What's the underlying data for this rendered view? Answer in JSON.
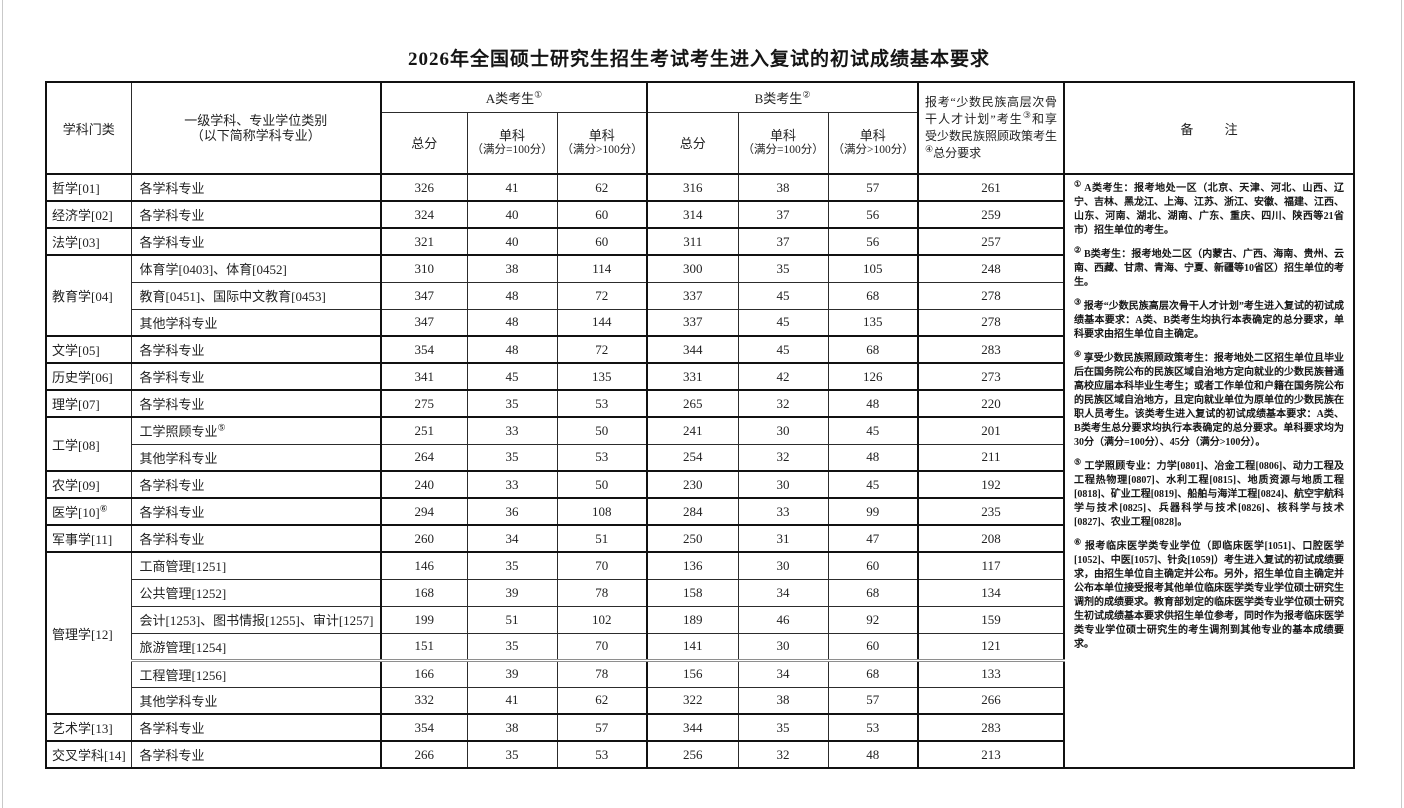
{
  "title": "2026年全国硕士研究生招生考试考生进入复试的初试成绩基本要求",
  "table": {
    "headers": {
      "subject_category": "学科门类",
      "discipline_line1": "一级学科、专业学位类别",
      "discipline_line2": "（以下简称学科专业）",
      "group_a_label": "A类考生",
      "group_a_sup": "①",
      "group_b_label": "B类考生",
      "group_b_sup": "②",
      "total_label": "总分",
      "single_label": "单科",
      "single_eq100_sub": "（满分=100分）",
      "single_gt100_sub": "（满分>100分）",
      "minority_p1": "报考“少数民族高层次骨干人才计划”考生",
      "minority_s1": "③",
      "minority_p2": "和享受少数民族照顾政策考生",
      "minority_s2": "④",
      "minority_p3": "总分要求",
      "remarks_label": "备 注"
    },
    "rows": [
      {
        "category": "哲学[01]",
        "cat_sup": "",
        "cat_span": 1,
        "group_start": true,
        "major": "各学科专业",
        "major_sup": "",
        "a_total": "326",
        "a_s100": "41",
        "a_sgt100": "62",
        "b_total": "316",
        "b_s100": "38",
        "b_sgt100": "57",
        "minority": "261"
      },
      {
        "category": "经济学[02]",
        "cat_sup": "",
        "cat_span": 1,
        "group_start": true,
        "major": "各学科专业",
        "major_sup": "",
        "a_total": "324",
        "a_s100": "40",
        "a_sgt100": "60",
        "b_total": "314",
        "b_s100": "37",
        "b_sgt100": "56",
        "minority": "259"
      },
      {
        "category": "法学[03]",
        "cat_sup": "",
        "cat_span": 1,
        "group_start": true,
        "major": "各学科专业",
        "major_sup": "",
        "a_total": "321",
        "a_s100": "40",
        "a_sgt100": "60",
        "b_total": "311",
        "b_s100": "37",
        "b_sgt100": "56",
        "minority": "257"
      },
      {
        "category": "教育学[04]",
        "cat_sup": "",
        "cat_span": 3,
        "group_start": true,
        "major": "体育学[0403]、体育[0452]",
        "major_sup": "",
        "a_total": "310",
        "a_s100": "38",
        "a_sgt100": "114",
        "b_total": "300",
        "b_s100": "35",
        "b_sgt100": "105",
        "minority": "248"
      },
      {
        "cat_span": 0,
        "major": "教育[0451]、国际中文教育[0453]",
        "major_sup": "",
        "a_total": "347",
        "a_s100": "48",
        "a_sgt100": "72",
        "b_total": "337",
        "b_s100": "45",
        "b_sgt100": "68",
        "minority": "278"
      },
      {
        "cat_span": 0,
        "major": "其他学科专业",
        "major_sup": "",
        "a_total": "347",
        "a_s100": "48",
        "a_sgt100": "144",
        "b_total": "337",
        "b_s100": "45",
        "b_sgt100": "135",
        "minority": "278"
      },
      {
        "category": "文学[05]",
        "cat_sup": "",
        "cat_span": 1,
        "group_start": true,
        "major": "各学科专业",
        "major_sup": "",
        "a_total": "354",
        "a_s100": "48",
        "a_sgt100": "72",
        "b_total": "344",
        "b_s100": "45",
        "b_sgt100": "68",
        "minority": "283"
      },
      {
        "category": "历史学[06]",
        "cat_sup": "",
        "cat_span": 1,
        "group_start": true,
        "major": "各学科专业",
        "major_sup": "",
        "a_total": "341",
        "a_s100": "45",
        "a_sgt100": "135",
        "b_total": "331",
        "b_s100": "42",
        "b_sgt100": "126",
        "minority": "273"
      },
      {
        "category": "理学[07]",
        "cat_sup": "",
        "cat_span": 1,
        "group_start": true,
        "major": "各学科专业",
        "major_sup": "",
        "a_total": "275",
        "a_s100": "35",
        "a_sgt100": "53",
        "b_total": "265",
        "b_s100": "32",
        "b_sgt100": "48",
        "minority": "220"
      },
      {
        "category": "工学[08]",
        "cat_sup": "",
        "cat_span": 2,
        "group_start": true,
        "major": "工学照顾专业",
        "major_sup": "⑤",
        "a_total": "251",
        "a_s100": "33",
        "a_sgt100": "50",
        "b_total": "241",
        "b_s100": "30",
        "b_sgt100": "45",
        "minority": "201"
      },
      {
        "cat_span": 0,
        "major": "其他学科专业",
        "major_sup": "",
        "a_total": "264",
        "a_s100": "35",
        "a_sgt100": "53",
        "b_total": "254",
        "b_s100": "32",
        "b_sgt100": "48",
        "minority": "211"
      },
      {
        "category": "农学[09]",
        "cat_sup": "",
        "cat_span": 1,
        "group_start": true,
        "major": "各学科专业",
        "major_sup": "",
        "a_total": "240",
        "a_s100": "33",
        "a_sgt100": "50",
        "b_total": "230",
        "b_s100": "30",
        "b_sgt100": "45",
        "minority": "192"
      },
      {
        "category": "医学[10]",
        "cat_sup": "⑥",
        "cat_span": 1,
        "group_start": true,
        "major": "各学科专业",
        "major_sup": "",
        "a_total": "294",
        "a_s100": "36",
        "a_sgt100": "108",
        "b_total": "284",
        "b_s100": "33",
        "b_sgt100": "99",
        "minority": "235"
      },
      {
        "category": "军事学[11]",
        "cat_sup": "",
        "cat_span": 1,
        "group_start": true,
        "major": "各学科专业",
        "major_sup": "",
        "a_total": "260",
        "a_s100": "34",
        "a_sgt100": "51",
        "b_total": "250",
        "b_s100": "31",
        "b_sgt100": "47",
        "minority": "208"
      },
      {
        "category": "管理学[12]",
        "cat_sup": "",
        "cat_span": 6,
        "group_start": true,
        "major": "工商管理[1251]",
        "major_sup": "",
        "a_total": "146",
        "a_s100": "35",
        "a_sgt100": "70",
        "b_total": "136",
        "b_s100": "30",
        "b_sgt100": "60",
        "minority": "117"
      },
      {
        "cat_span": 0,
        "major": "公共管理[1252]",
        "major_sup": "",
        "a_total": "168",
        "a_s100": "39",
        "a_sgt100": "78",
        "b_total": "158",
        "b_s100": "34",
        "b_sgt100": "68",
        "minority": "134"
      },
      {
        "cat_span": 0,
        "major": "会计[1253]、图书情报[1255]、审计[1257]",
        "major_sup": "",
        "a_total": "199",
        "a_s100": "51",
        "a_sgt100": "102",
        "b_total": "189",
        "b_s100": "46",
        "b_sgt100": "92",
        "minority": "159"
      },
      {
        "cat_span": 0,
        "major": "旅游管理[1254]",
        "major_sup": "",
        "a_total": "151",
        "a_s100": "35",
        "a_sgt100": "70",
        "b_total": "141",
        "b_s100": "30",
        "b_sgt100": "60",
        "minority": "121"
      },
      {
        "cat_span": 0,
        "gray_split": true,
        "major": "工程管理[1256]",
        "major_sup": "",
        "a_total": "166",
        "a_s100": "39",
        "a_sgt100": "78",
        "b_total": "156",
        "b_s100": "34",
        "b_sgt100": "68",
        "minority": "133"
      },
      {
        "cat_span": 0,
        "major": "其他学科专业",
        "major_sup": "",
        "a_total": "332",
        "a_s100": "41",
        "a_sgt100": "62",
        "b_total": "322",
        "b_s100": "38",
        "b_sgt100": "57",
        "minority": "266"
      },
      {
        "category": "艺术学[13]",
        "cat_sup": "",
        "cat_span": 1,
        "group_start": true,
        "major": "各学科专业",
        "major_sup": "",
        "a_total": "354",
        "a_s100": "38",
        "a_sgt100": "57",
        "b_total": "344",
        "b_s100": "35",
        "b_sgt100": "53",
        "minority": "283"
      },
      {
        "category": "交叉学科[14]",
        "cat_sup": "",
        "cat_span": 1,
        "group_start": true,
        "major": "各学科专业",
        "major_sup": "",
        "a_total": "266",
        "a_s100": "35",
        "a_sgt100": "53",
        "b_total": "256",
        "b_s100": "32",
        "b_sgt100": "48",
        "minority": "213"
      }
    ],
    "notes": [
      {
        "sup": "①",
        "text": "A类考生：报考地处一区（北京、天津、河北、山西、辽宁、吉林、黑龙江、上海、江苏、浙江、安徽、福建、江西、山东、河南、湖北、湖南、广东、重庆、四川、陕西等21省市）招生单位的考生。"
      },
      {
        "sup": "②",
        "text": "B类考生：报考地处二区（内蒙古、广西、海南、贵州、云南、西藏、甘肃、青海、宁夏、新疆等10省区）招生单位的考生。"
      },
      {
        "sup": "③",
        "text": "报考“少数民族高层次骨干人才计划”考生进入复试的初试成绩基本要求：A类、B类考生均执行本表确定的总分要求，单科要求由招生单位自主确定。"
      },
      {
        "sup": "④",
        "text": "享受少数民族照顾政策考生：报考地处二区招生单位且毕业后在国务院公布的民族区域自治地方定向就业的少数民族普通高校应届本科毕业生考生；或者工作单位和户籍在国务院公布的民族区域自治地方，且定向就业单位为原单位的少数民族在职人员考生。该类考生进入复试的初试成绩基本要求：A类、B类考生总分要求均执行本表确定的总分要求。单科要求均为30分（满分=100分）、45分（满分>100分）。"
      },
      {
        "sup": "⑤",
        "text": "工学照顾专业：力学[0801]、冶金工程[0806]、动力工程及工程热物理[0807]、水利工程[0815]、地质资源与地质工程[0818]、矿业工程[0819]、船舶与海洋工程[0824]、航空宇航科学与技术[0825]、兵器科学与技术[0826]、核科学与技术[0827]、农业工程[0828]。"
      },
      {
        "sup": "⑥",
        "text": "报考临床医学类专业学位（即临床医学[1051]、口腔医学[1052]、中医[1057]、针灸[1059]）考生进入复试的初试成绩要求，由招生单位自主确定并公布。另外，招生单位自主确定并公布本单位接受报考其他单位临床医学类专业学位硕士研究生调剂的成绩要求。教育部划定的临床医学类专业学位硕士研究生初试成绩基本要求供招生单位参考，同时作为报考临床医学类专业学位硕士研究生的考生调剂到其他专业的基本成绩要求。"
      }
    ]
  }
}
